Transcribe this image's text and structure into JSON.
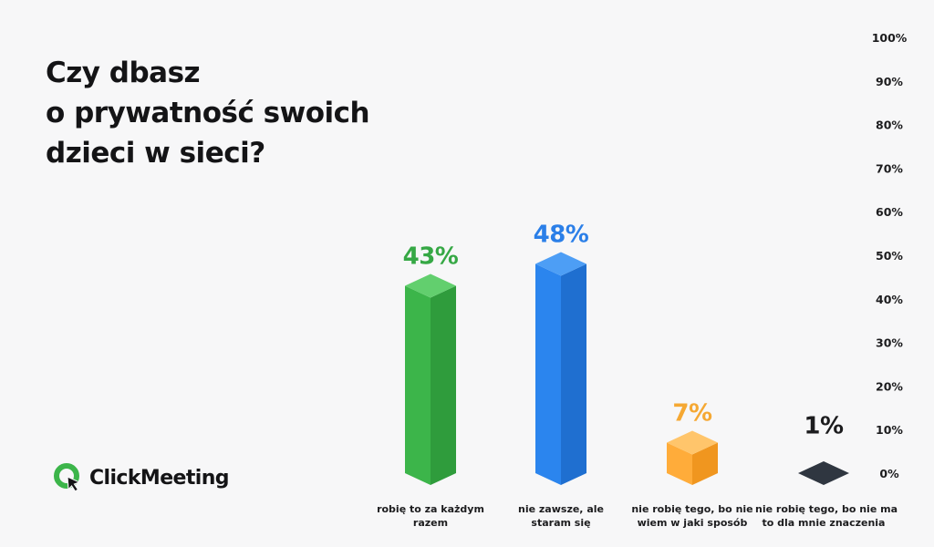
{
  "title": {
    "line1": "Czy dbasz",
    "line2": "o prywatność swoich",
    "line3": "dzieci w sieci?"
  },
  "brand": {
    "name": "ClickMeeting",
    "logo_icon": "clickmeeting-logo-icon"
  },
  "categories": [
    {
      "line1": "robię to za każdym",
      "line2": "razem"
    },
    {
      "line1": "nie zawsze, ale",
      "line2": "staram się"
    },
    {
      "line1": "nie robię tego, bo nie",
      "line2": "wiem w jaki sposób"
    },
    {
      "line1": "nie robię tego, bo nie ma",
      "line2": "to dla mnie znaczenia"
    }
  ],
  "chart_data": {
    "type": "bar",
    "categories": [
      "robię to za każdym razem",
      "nie zawsze, ale staram się",
      "nie robię tego, bo nie wiem w jaki sposób",
      "nie robię tego, bo nie ma to dla mnie znaczenia"
    ],
    "values": [
      43,
      48,
      7,
      1
    ],
    "value_labels": [
      "43%",
      "48%",
      "7%",
      "1%"
    ],
    "title": "Czy dbasz o prywatność swoich dzieci w sieci?",
    "xlabel": "",
    "ylabel": "",
    "ylim": [
      0,
      100
    ],
    "y_ticks": [
      "0%",
      "10%",
      "20%",
      "30%",
      "40%",
      "50%",
      "60%",
      "70%",
      "80%",
      "90%",
      "100%"
    ],
    "y_axis_position": "right",
    "grid": false,
    "colors": {
      "bars": [
        "#3cb54a",
        "#2b85ee",
        "#ffac3a",
        "#2f3640"
      ],
      "bars_dark": [
        "#2f9c3c",
        "#1f6fd0",
        "#f0961f",
        "#22272e"
      ],
      "bars_top": [
        "#62cf6e",
        "#4d9ef5",
        "#ffc56b",
        "#2f3640"
      ],
      "labels": [
        "#36a845",
        "#2b7fe8",
        "#f5a833",
        "#1c1c1e"
      ]
    }
  }
}
